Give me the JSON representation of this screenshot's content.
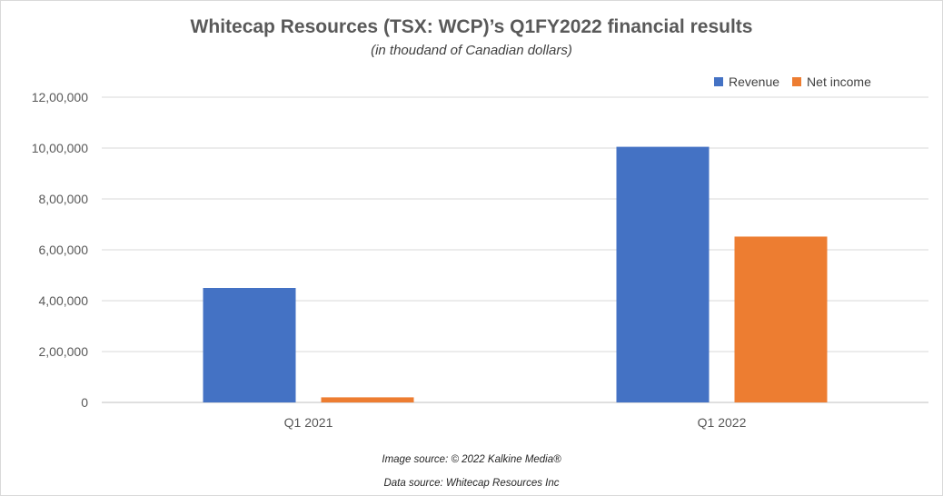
{
  "chart_data": {
    "type": "bar",
    "title": "Whitecap Resources (TSX: WCP)’s Q1FY2022 financial results",
    "subtitle": "(in thoudand of Canadian dollars)",
    "categories": [
      "Q1 2021",
      "Q1 2022"
    ],
    "series": [
      {
        "name": "Revenue",
        "color": "#4472c4",
        "values": [
          450000,
          1005000
        ]
      },
      {
        "name": "Net income",
        "color": "#ed7d31",
        "values": [
          20000,
          652000
        ]
      }
    ],
    "ylim": [
      0,
      1200000
    ],
    "yticks": [
      0,
      200000,
      400000,
      600000,
      800000,
      1000000,
      1200000
    ],
    "ytick_labels": [
      "0",
      "2,00,000",
      "4,00,000",
      "6,00,000",
      "8,00,000",
      "10,00,000",
      "12,00,000"
    ],
    "grid": true,
    "legend": "top-right"
  },
  "footer": {
    "image_source": "Image source: © 2022 Kalkine Media®",
    "data_source": "Data source: Whitecap Resources Inc"
  }
}
